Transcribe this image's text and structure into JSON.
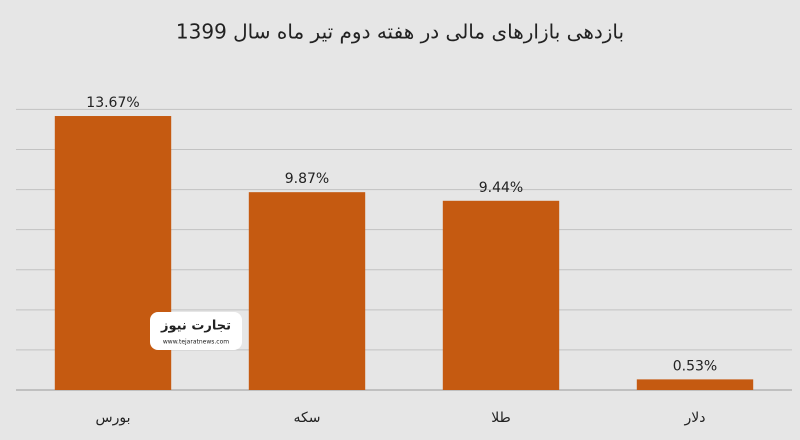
{
  "chart_data": {
    "type": "bar",
    "title": "بازدهی بازارهای مالی در هفته دوم تیر ماه سال 1399",
    "categories": [
      "بورس",
      "سکه",
      "طلا",
      "دلار"
    ],
    "values": [
      13.67,
      9.87,
      9.44,
      0.53
    ],
    "value_labels": [
      "13.67%",
      "9.87%",
      "9.44%",
      "0.53%"
    ],
    "color": "#c55a11",
    "ylim": [
      0,
      14
    ],
    "yticks": [
      0,
      2,
      4,
      6,
      8,
      10,
      12,
      14
    ],
    "grid": true
  },
  "watermark": {
    "name": "تجارت نیوز",
    "url": "www.tejaratnews.com"
  }
}
